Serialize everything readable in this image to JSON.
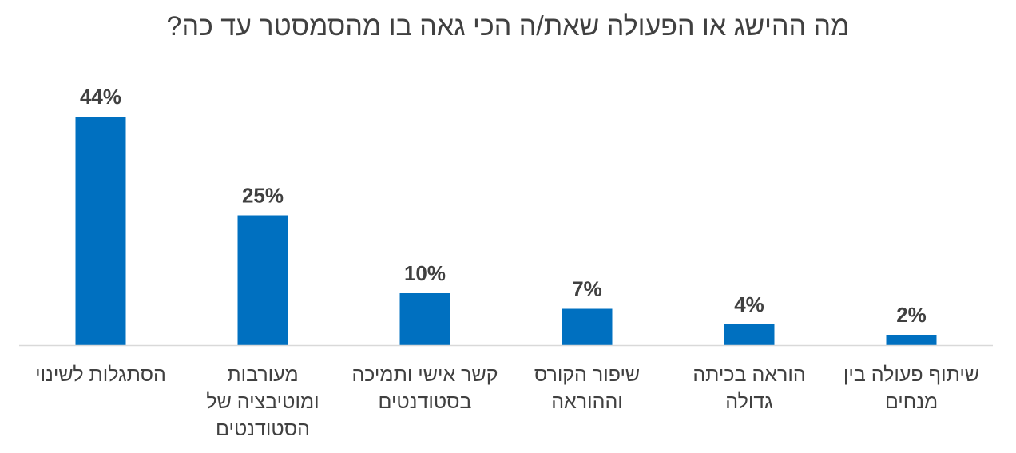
{
  "chart_data": {
    "type": "bar",
    "title": "מה ההישג או הפעולה שאת/ה הכי גאה בו מהסמסטר עד כה?",
    "categories": [
      [
        "הסתגלות לשינוי"
      ],
      [
        "מעורבות",
        "ומוטיבציה של",
        "הסטודנטים"
      ],
      [
        "קשר אישי ותמיכה",
        "בסטודנטים"
      ],
      [
        "שיפור הקורס",
        "וההוראה"
      ],
      [
        "הוראה בכיתה",
        "גדולה"
      ],
      [
        "שיתוף פעולה בין",
        "מנחים"
      ]
    ],
    "values": [
      44,
      25,
      10,
      7,
      4,
      2
    ],
    "data_labels": [
      "44%",
      "25%",
      "10%",
      "7%",
      "4%",
      "2%"
    ],
    "unit": "%",
    "ylim": [
      0,
      44
    ],
    "grid": false,
    "legend": "none",
    "colors": {
      "bar": "#0070C0",
      "axis": "#D9D9D9",
      "text": "#404040"
    }
  }
}
